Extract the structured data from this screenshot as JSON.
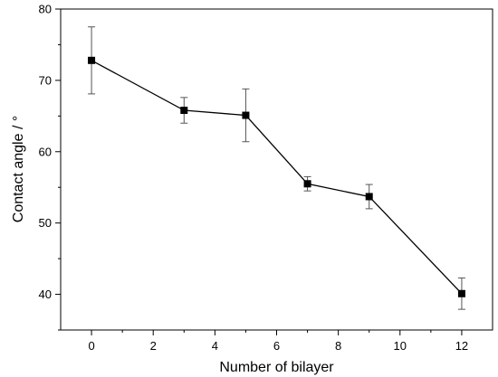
{
  "chart_data": {
    "type": "line",
    "xlabel": "Number of bilayer",
    "ylabel": "Contact angle / °",
    "xlim": [
      -1,
      13
    ],
    "ylim": [
      35,
      80
    ],
    "xticks": [
      0,
      2,
      4,
      6,
      8,
      10,
      12
    ],
    "yticks": [
      40,
      50,
      60,
      70,
      80
    ],
    "grid": false,
    "series": [
      {
        "x": [
          0,
          3,
          5,
          7,
          9,
          12
        ],
        "y": [
          72.8,
          65.8,
          65.1,
          55.5,
          53.7,
          40.1
        ],
        "yerr": [
          4.7,
          1.8,
          3.7,
          1.0,
          1.7,
          2.2
        ],
        "marker": "square",
        "color": "#000000"
      }
    ]
  }
}
